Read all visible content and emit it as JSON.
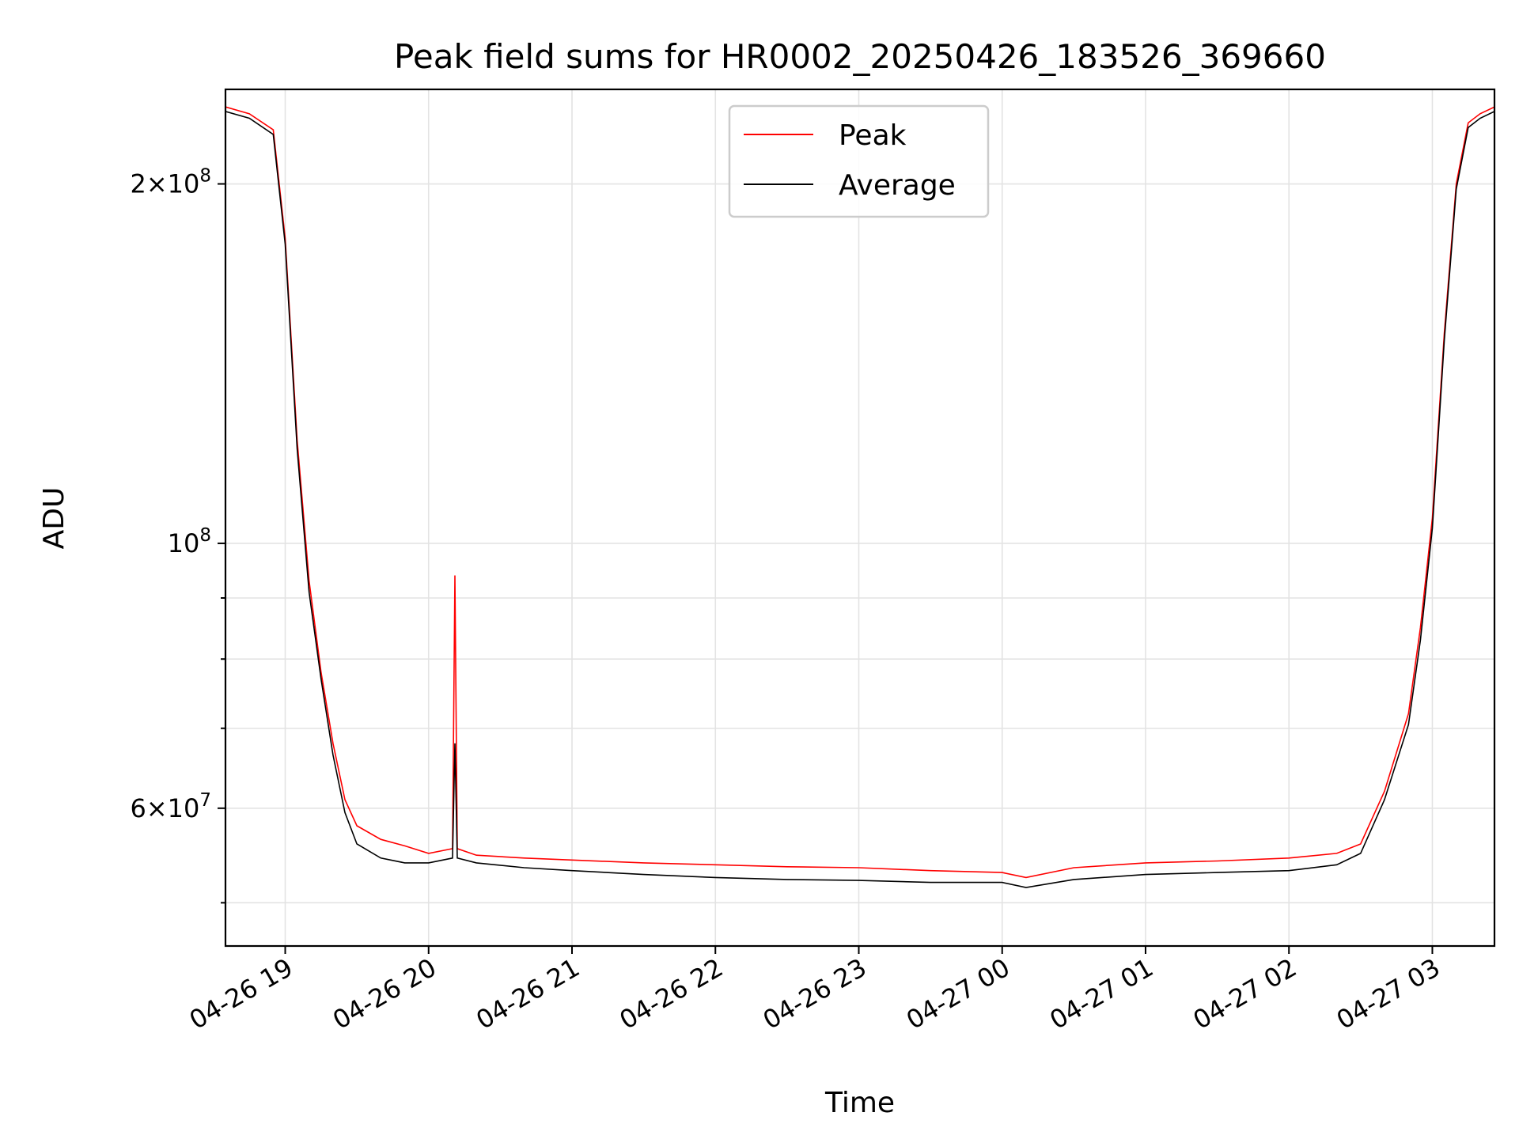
{
  "chart_data": {
    "type": "line",
    "title": "Peak field sums for HR0002_20250426_183526_369660",
    "xlabel": "Time",
    "ylabel": "ADU",
    "yscale": "log",
    "ylim": [
      46000000,
      240000000
    ],
    "xlim": [
      "2025-04-26 18:35",
      "2025-04-27 03:26"
    ],
    "x_ticks": [
      {
        "label": "04-26 19",
        "x": "2025-04-26 19:00"
      },
      {
        "label": "04-26 20",
        "x": "2025-04-26 20:00"
      },
      {
        "label": "04-26 21",
        "x": "2025-04-26 21:00"
      },
      {
        "label": "04-26 22",
        "x": "2025-04-26 22:00"
      },
      {
        "label": "04-26 23",
        "x": "2025-04-26 23:00"
      },
      {
        "label": "04-27 00",
        "x": "2025-04-27 00:00"
      },
      {
        "label": "04-27 01",
        "x": "2025-04-27 01:00"
      },
      {
        "label": "04-27 02",
        "x": "2025-04-27 02:00"
      },
      {
        "label": "04-27 03",
        "x": "2025-04-27 03:00"
      }
    ],
    "y_ticks": [
      {
        "mantissa": "2",
        "exponent": "8",
        "value": 200000000
      },
      {
        "mantissa": "",
        "exponent": "8",
        "value": 100000000
      },
      {
        "mantissa": "6",
        "exponent": "7",
        "value": 60000000
      }
    ],
    "y_minor_ticks": [
      50000000,
      70000000,
      80000000,
      90000000
    ],
    "grid": true,
    "legend_position": "upper-center",
    "series": [
      {
        "name": "Peak",
        "color": "#ff0000",
        "x": [
          "2025-04-26 18:35",
          "2025-04-26 18:45",
          "2025-04-26 18:55",
          "2025-04-26 19:00",
          "2025-04-26 19:05",
          "2025-04-26 19:10",
          "2025-04-26 19:15",
          "2025-04-26 19:20",
          "2025-04-26 19:25",
          "2025-04-26 19:30",
          "2025-04-26 19:40",
          "2025-04-26 19:50",
          "2025-04-26 20:00",
          "2025-04-26 20:10",
          "2025-04-26 20:11",
          "2025-04-26 20:12",
          "2025-04-26 20:20",
          "2025-04-26 20:40",
          "2025-04-26 21:00",
          "2025-04-26 21:30",
          "2025-04-26 22:00",
          "2025-04-26 22:30",
          "2025-04-26 23:00",
          "2025-04-26 23:30",
          "2025-04-27 00:00",
          "2025-04-27 00:10",
          "2025-04-27 00:30",
          "2025-04-27 01:00",
          "2025-04-27 01:30",
          "2025-04-27 02:00",
          "2025-04-27 02:20",
          "2025-04-27 02:30",
          "2025-04-27 02:40",
          "2025-04-27 02:50",
          "2025-04-27 02:55",
          "2025-04-27 03:00",
          "2025-04-27 03:05",
          "2025-04-27 03:10",
          "2025-04-27 03:15",
          "2025-04-27 03:20",
          "2025-04-27 03:26"
        ],
        "y": [
          232000000,
          229000000,
          222000000,
          180000000,
          122000000,
          93000000,
          78000000,
          68000000,
          61000000,
          58000000,
          56500000,
          55800000,
          55000000,
          55500000,
          94000000,
          55500000,
          54800000,
          54500000,
          54300000,
          54000000,
          53800000,
          53600000,
          53500000,
          53200000,
          53000000,
          52500000,
          53500000,
          54000000,
          54200000,
          54500000,
          55000000,
          56000000,
          62000000,
          72000000,
          85000000,
          105000000,
          150000000,
          200000000,
          225000000,
          229000000,
          232000000
        ]
      },
      {
        "name": "Average",
        "color": "#000000",
        "x": [
          "2025-04-26 18:35",
          "2025-04-26 18:45",
          "2025-04-26 18:55",
          "2025-04-26 19:00",
          "2025-04-26 19:05",
          "2025-04-26 19:10",
          "2025-04-26 19:15",
          "2025-04-26 19:20",
          "2025-04-26 19:25",
          "2025-04-26 19:30",
          "2025-04-26 19:40",
          "2025-04-26 19:50",
          "2025-04-26 20:00",
          "2025-04-26 20:10",
          "2025-04-26 20:11",
          "2025-04-26 20:12",
          "2025-04-26 20:20",
          "2025-04-26 20:40",
          "2025-04-26 21:00",
          "2025-04-26 21:30",
          "2025-04-26 22:00",
          "2025-04-26 22:30",
          "2025-04-26 23:00",
          "2025-04-26 23:30",
          "2025-04-27 00:00",
          "2025-04-27 00:10",
          "2025-04-27 00:30",
          "2025-04-27 01:00",
          "2025-04-27 01:30",
          "2025-04-27 02:00",
          "2025-04-27 02:20",
          "2025-04-27 02:30",
          "2025-04-27 02:40",
          "2025-04-27 02:50",
          "2025-04-27 02:55",
          "2025-04-27 03:00",
          "2025-04-27 03:05",
          "2025-04-27 03:10",
          "2025-04-27 03:15",
          "2025-04-27 03:20",
          "2025-04-27 03:26"
        ],
        "y": [
          230000000,
          227000000,
          220000000,
          178000000,
          120000000,
          91000000,
          77000000,
          66500000,
          59500000,
          56000000,
          54500000,
          54000000,
          54000000,
          54500000,
          68000000,
          54500000,
          54000000,
          53500000,
          53200000,
          52800000,
          52500000,
          52300000,
          52200000,
          52000000,
          52000000,
          51500000,
          52300000,
          52800000,
          53000000,
          53200000,
          53800000,
          55000000,
          61000000,
          70500000,
          83000000,
          103000000,
          148000000,
          198000000,
          223000000,
          227000000,
          230000000
        ]
      }
    ]
  }
}
